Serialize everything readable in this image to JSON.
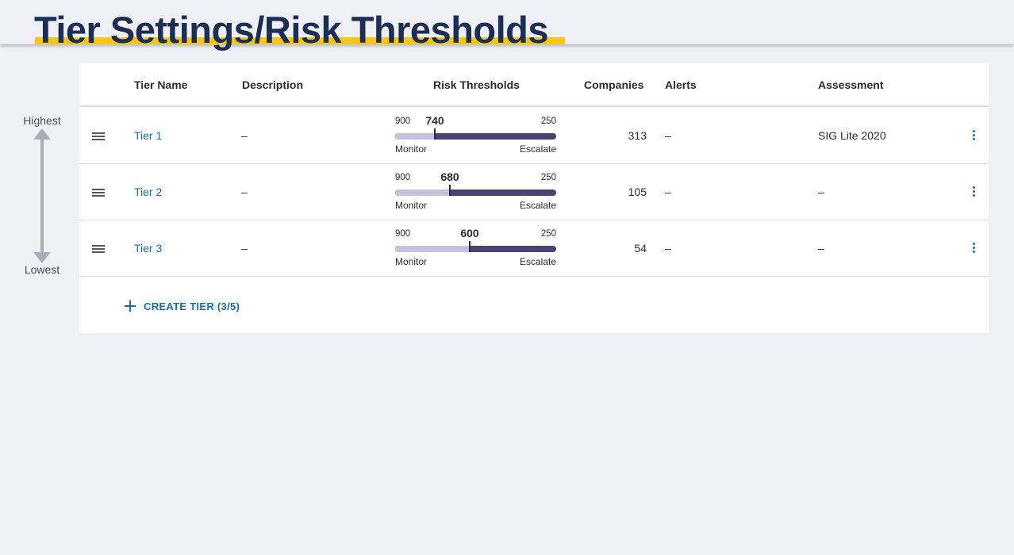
{
  "page": {
    "title": "Tier Settings/Risk Thresholds",
    "accent_color": "#f5c518",
    "title_color": "#1d2e54",
    "link_color": "#1a6ea8"
  },
  "priority": {
    "highest_label": "Highest",
    "lowest_label": "Lowest",
    "icon": "vertical-double-arrow-icon"
  },
  "table": {
    "headers": {
      "tier_name": "Tier Name",
      "description": "Description",
      "risk_thresholds": "Risk Thresholds",
      "companies": "Companies",
      "alerts": "Alerts",
      "assessment": "Assessment"
    },
    "rows": [
      {
        "name": "Tier 1",
        "description": "–",
        "threshold": {
          "max": "900",
          "min": "250",
          "value": "740",
          "monitor_label": "Monitor",
          "escalate_label": "Escalate"
        },
        "companies": "313",
        "alerts": "–",
        "assessment": "SIG Lite 2020"
      },
      {
        "name": "Tier 2",
        "description": "–",
        "threshold": {
          "max": "900",
          "min": "250",
          "value": "680",
          "monitor_label": "Monitor",
          "escalate_label": "Escalate"
        },
        "companies": "105",
        "alerts": "–",
        "assessment": "–"
      },
      {
        "name": "Tier 3",
        "description": "–",
        "threshold": {
          "max": "900",
          "min": "250",
          "value": "600",
          "monitor_label": "Monitor",
          "escalate_label": "Escalate"
        },
        "companies": "54",
        "alerts": "–",
        "assessment": "–"
      }
    ]
  },
  "create_tier": {
    "label": "CREATE TIER (3/5)",
    "icon": "plus-icon"
  },
  "slider_colors": {
    "monitor": "#c5c1dc",
    "escalate": "#4a4272"
  }
}
